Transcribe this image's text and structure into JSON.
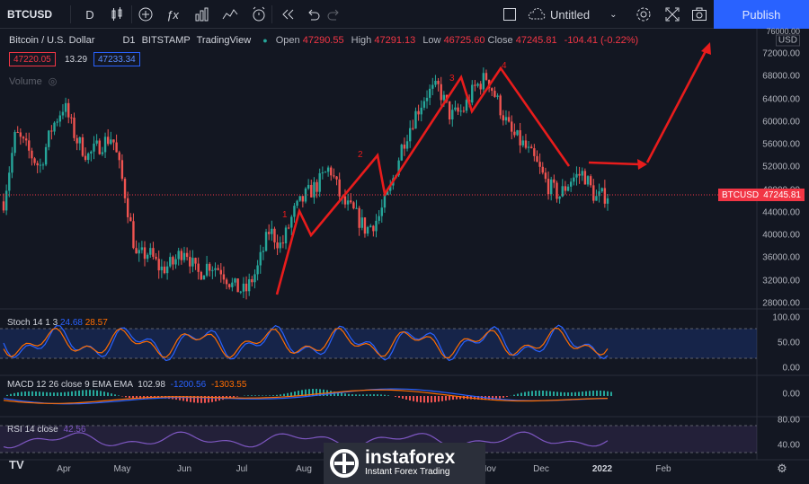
{
  "toolbar": {
    "symbol": "BTCUSD",
    "interval": "D",
    "layout_name": "Untitled",
    "publish_label": "Publish",
    "icons": [
      "candles-icon",
      "add-indicator-icon",
      "fx-icon",
      "bar-chart-icon",
      "templates-icon",
      "alert-icon",
      "replay-icon",
      "undo-icon",
      "redo-icon",
      "fullscreen-square-icon",
      "cloud-icon",
      "settings-icon",
      "expand-icon",
      "camera-icon"
    ]
  },
  "legend": {
    "title": "Bitcoin / U.S. Dollar",
    "timeframe": "D1",
    "exchange": "BITSTAMP",
    "source": "TradingView",
    "open_label": "Open",
    "open": "47290.55",
    "high_label": "High",
    "high": "47291.13",
    "low_label": "Low",
    "low": "46725.60",
    "close_label": "Close",
    "close": "47245.81",
    "change": "-104.41 (-0.22%)",
    "bid": "47220.05",
    "spread": "13.29",
    "ask": "47233.34",
    "volume_label": "Volume"
  },
  "price_axis": {
    "currency": "USD",
    "top_partial": "76000.00",
    "labels": [
      "72000.00",
      "68000.00",
      "64000.00",
      "60000.00",
      "56000.00",
      "52000.00",
      "48000.00",
      "44000.00",
      "40000.00",
      "36000.00",
      "32000.00",
      "28000.00"
    ],
    "last_symbol": "BTCUSD",
    "last_price": "47245.81"
  },
  "indicators": {
    "stoch": {
      "legend": "Stoch 14 1 3",
      "k": "24.68",
      "d": "28.57",
      "axis": [
        "100.00",
        "50.00",
        "0.00"
      ]
    },
    "macd": {
      "legend": "MACD 12 26 close 9 EMA EMA",
      "hist": "102.98",
      "macd": "-1200.56",
      "signal": "-1303.55",
      "axis": [
        "0.00"
      ]
    },
    "rsi": {
      "legend": "RSI 14 close",
      "value": "42.56",
      "axis": [
        "80.00",
        "40.00"
      ]
    }
  },
  "time_axis": [
    "Apr",
    "May",
    "Jun",
    "Jul",
    "Aug",
    "Nov",
    "Dec",
    "2022",
    "Feb"
  ],
  "annotations": [
    "1",
    "2",
    "3",
    "4"
  ],
  "watermark": {
    "brand": "instaforex",
    "tagline": "Instant Forex Trading"
  },
  "colors": {
    "up": "#26a69a",
    "down": "#ef5350",
    "drawing": "#e81c1c",
    "accent": "#2962ff",
    "stoch_k": "#2962ff",
    "stoch_d": "#ff6d00",
    "rsi": "#7e57c2"
  },
  "chart_data": {
    "type": "candlestick",
    "approx_closes": [
      46000,
      58000,
      55000,
      52000,
      59000,
      63000,
      57000,
      54000,
      56000,
      57500,
      48000,
      36000,
      37000,
      34000,
      35000,
      38000,
      33000,
      35000,
      34000,
      31000,
      30000,
      34000,
      41000,
      38000,
      44000,
      47000,
      49000,
      52000,
      46000,
      44000,
      41000,
      43000,
      48000,
      56000,
      61000,
      65000,
      66000,
      61000,
      62000,
      66000,
      68000,
      63000,
      58000,
      56000,
      53000,
      49000,
      47000,
      50000,
      51000,
      46500,
      47245
    ]
  }
}
